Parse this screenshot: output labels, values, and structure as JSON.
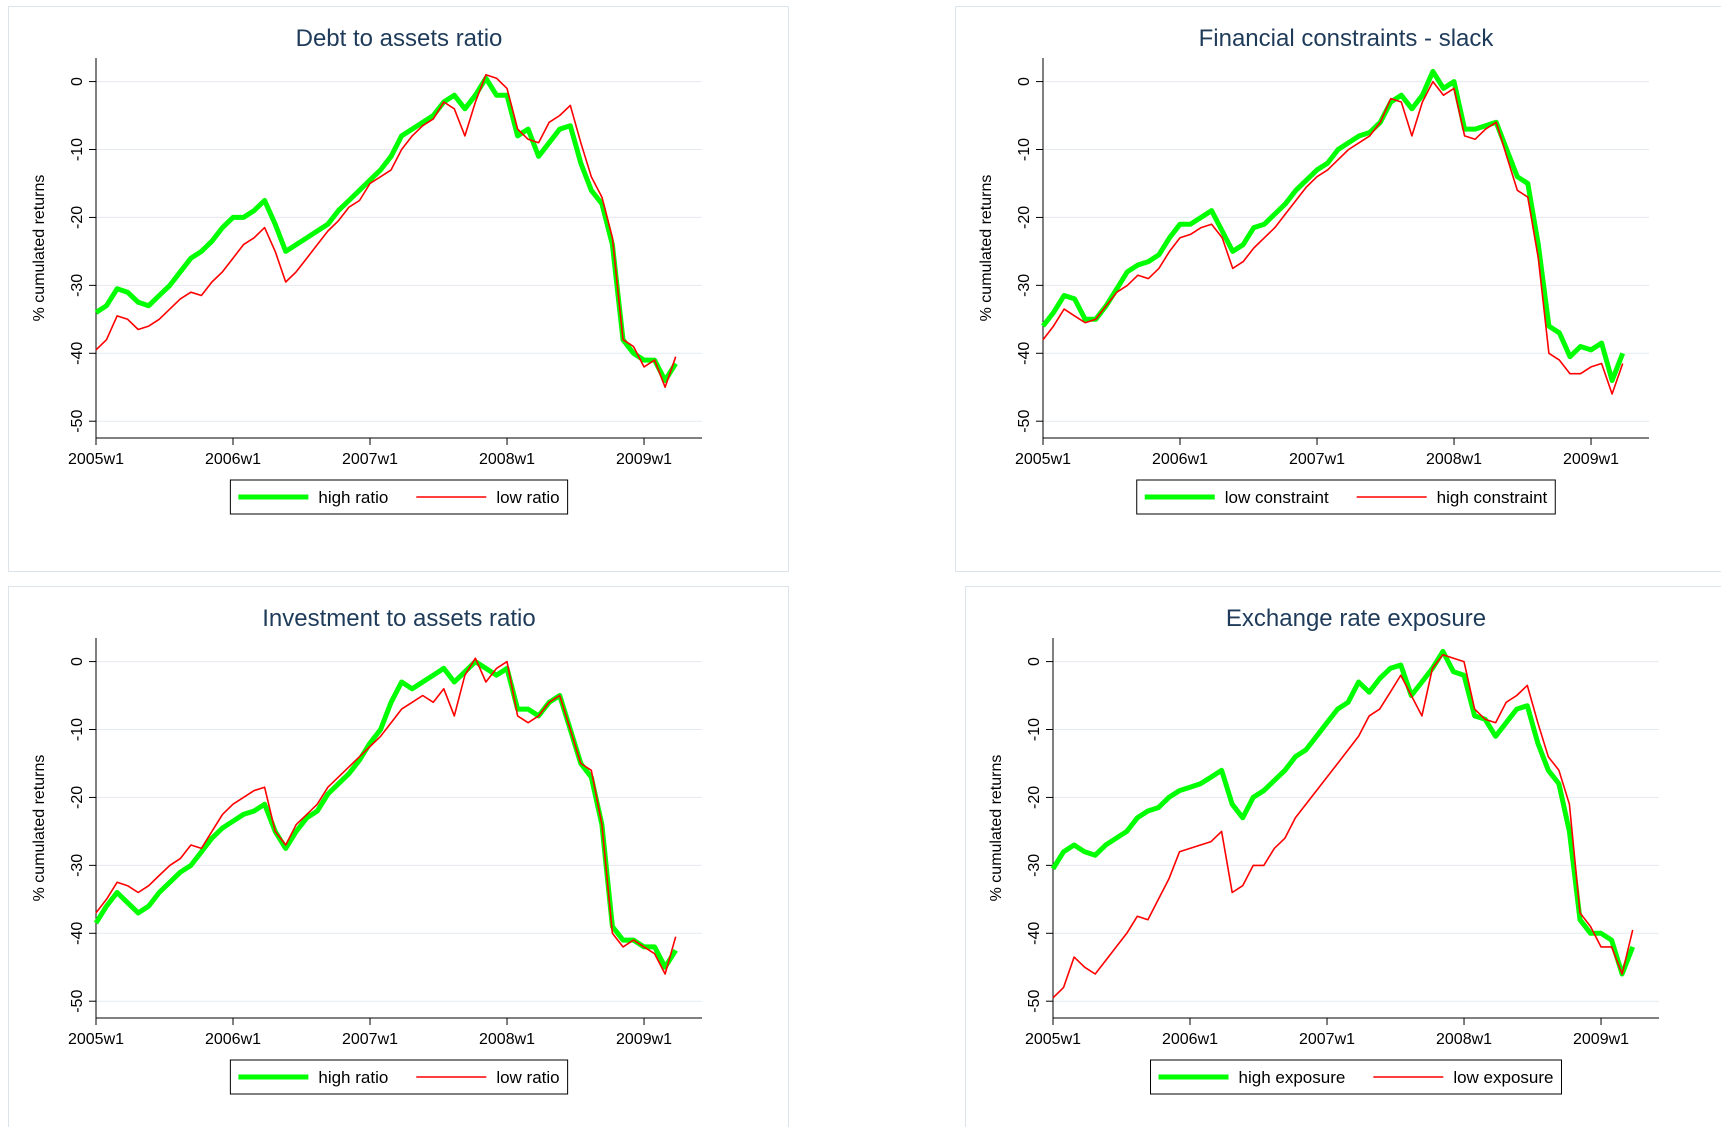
{
  "chart_data": [
    {
      "type": "line",
      "title": "Debt to assets ratio",
      "y_label": "% cumulated returns",
      "categories": [
        "2005w1",
        null,
        null,
        null,
        null,
        null,
        null,
        null,
        null,
        null,
        null,
        null,
        null,
        "2006w1",
        null,
        null,
        null,
        null,
        null,
        null,
        null,
        null,
        null,
        null,
        null,
        null,
        "2007w1",
        null,
        null,
        null,
        null,
        null,
        null,
        null,
        null,
        null,
        null,
        null,
        null,
        "2008w1",
        null,
        null,
        null,
        null,
        null,
        null,
        null,
        null,
        null,
        null,
        null,
        null,
        "2009w1",
        null,
        null,
        null
      ],
      "series": [
        {
          "name": "high ratio",
          "color": "#00ff00",
          "values": [
            -34,
            -33,
            -30.5,
            -31,
            -32.5,
            -33,
            -31.5,
            -30,
            -28,
            -26,
            -25,
            -23.5,
            -21.5,
            -20,
            -20,
            -19,
            -17.5,
            -21,
            -25,
            -24,
            -23,
            -22,
            -21,
            -19,
            -17.5,
            -16,
            -14.5,
            -13,
            -11,
            -8,
            -7,
            -6,
            -5,
            -3,
            -2,
            -4,
            -2,
            0.5,
            -2,
            -2,
            -8,
            -7,
            -11,
            -9,
            -7,
            -6.5,
            -12,
            -16,
            -18,
            -24,
            -38,
            -40,
            -41,
            -41,
            -44,
            -41.5
          ]
        },
        {
          "name": "low ratio",
          "color": "#ff0000",
          "values": [
            -39.5,
            -38,
            -34.5,
            -35,
            -36.5,
            -36,
            -35,
            -33.5,
            -32,
            -31,
            -31.5,
            -29.5,
            -28,
            -26,
            -24,
            -23,
            -21.5,
            -25,
            -29.5,
            -28,
            -26,
            -24,
            -22,
            -20.5,
            -18.5,
            -17.5,
            -15,
            -14,
            -13,
            -10,
            -8,
            -6.5,
            -5.5,
            -3,
            -4,
            -8,
            -3,
            1,
            0.5,
            -1,
            -7,
            -8.5,
            -9,
            -6,
            -5,
            -3.5,
            -9,
            -14,
            -17,
            -23,
            -38,
            -39,
            -42,
            -41,
            -45,
            -40.5
          ]
        }
      ],
      "ylim": [
        -51,
        2
      ],
      "yticks": [
        0,
        -10,
        -20,
        -30,
        -40,
        -50
      ],
      "grid": true
    },
    {
      "type": "line",
      "title": "Financial constraints - slack",
      "y_label": "% cumulated returns",
      "categories": [
        "2005w1",
        null,
        null,
        null,
        null,
        null,
        null,
        null,
        null,
        null,
        null,
        null,
        null,
        "2006w1",
        null,
        null,
        null,
        null,
        null,
        null,
        null,
        null,
        null,
        null,
        null,
        null,
        "2007w1",
        null,
        null,
        null,
        null,
        null,
        null,
        null,
        null,
        null,
        null,
        null,
        null,
        "2008w1",
        null,
        null,
        null,
        null,
        null,
        null,
        null,
        null,
        null,
        null,
        null,
        null,
        "2009w1",
        null,
        null,
        null
      ],
      "series": [
        {
          "name": "low constraint",
          "color": "#00ff00",
          "values": [
            -36,
            -34,
            -31.5,
            -32,
            -35,
            -35,
            -33,
            -30.5,
            -28,
            -27,
            -26.5,
            -25.5,
            -23,
            -21,
            -21,
            -20,
            -19,
            -22,
            -25,
            -24,
            -21.5,
            -21,
            -19.5,
            -18,
            -16,
            -14.5,
            -13,
            -12,
            -10,
            -9,
            -8,
            -7.5,
            -6,
            -3,
            -2,
            -4,
            -2,
            1.5,
            -1,
            0,
            -7,
            -7,
            -6.5,
            -6,
            -10,
            -14,
            -15,
            -24,
            -36,
            -37,
            -40.5,
            -39,
            -39.5,
            -38.5,
            -44,
            -40
          ]
        },
        {
          "name": "high constraint",
          "color": "#ff0000",
          "values": [
            -38,
            -36,
            -33.5,
            -34.5,
            -35.5,
            -35,
            -33,
            -31,
            -30,
            -28.5,
            -29,
            -27.5,
            -25,
            -23,
            -22.5,
            -21.5,
            -21,
            -23,
            -27.5,
            -26.5,
            -24.5,
            -23,
            -21.5,
            -19.5,
            -17.5,
            -15.5,
            -14,
            -13,
            -11.5,
            -10,
            -9,
            -8,
            -6,
            -2.5,
            -3,
            -8,
            -3,
            0,
            -2,
            -1,
            -8,
            -8.5,
            -7,
            -6,
            -11,
            -16,
            -17,
            -26,
            -40,
            -41,
            -43,
            -43,
            -42,
            -41.5,
            -46,
            -41.5
          ]
        }
      ],
      "ylim": [
        -51,
        2
      ],
      "yticks": [
        0,
        -10,
        -20,
        -30,
        -40,
        -50
      ],
      "grid": true
    },
    {
      "type": "line",
      "title": "Investment to assets ratio",
      "y_label": "% cumulated returns",
      "categories": [
        "2005w1",
        null,
        null,
        null,
        null,
        null,
        null,
        null,
        null,
        null,
        null,
        null,
        null,
        "2006w1",
        null,
        null,
        null,
        null,
        null,
        null,
        null,
        null,
        null,
        null,
        null,
        null,
        "2007w1",
        null,
        null,
        null,
        null,
        null,
        null,
        null,
        null,
        null,
        null,
        null,
        null,
        "2008w1",
        null,
        null,
        null,
        null,
        null,
        null,
        null,
        null,
        null,
        null,
        null,
        null,
        "2009w1",
        null,
        null,
        null
      ],
      "series": [
        {
          "name": "high ratio",
          "color": "#00ff00",
          "values": [
            -38.5,
            -36,
            -34,
            -35.5,
            -37,
            -36,
            -34,
            -32.5,
            -31,
            -30,
            -28,
            -26,
            -24.5,
            -23.5,
            -22.5,
            -22,
            -21,
            -25,
            -27.5,
            -25,
            -23,
            -22,
            -19.5,
            -18,
            -16.5,
            -14.5,
            -12,
            -10,
            -6,
            -3,
            -4,
            -3,
            -2,
            -1,
            -3,
            -1.5,
            0,
            -1,
            -2,
            -1,
            -7,
            -7,
            -8,
            -6,
            -5,
            -10,
            -15,
            -17,
            -24,
            -39,
            -41,
            -41,
            -42,
            -42,
            -45,
            -42.5
          ]
        },
        {
          "name": "low ratio",
          "color": "#ff0000",
          "values": [
            -37,
            -35,
            -32.5,
            -33,
            -34,
            -33,
            -31.5,
            -30,
            -29,
            -27,
            -27.5,
            -25,
            -22.5,
            -21,
            -20,
            -19,
            -18.5,
            -25,
            -27,
            -24,
            -22.5,
            -21,
            -18.5,
            -17,
            -15.5,
            -14,
            -12.5,
            -11,
            -9,
            -7,
            -6,
            -5,
            -6,
            -4,
            -8,
            -2,
            0.5,
            -3,
            -1,
            0,
            -8,
            -9,
            -8,
            -6,
            -5,
            -10,
            -15,
            -16,
            -24,
            -40,
            -42,
            -41,
            -42,
            -43,
            -46,
            -40.5
          ]
        }
      ],
      "ylim": [
        -51,
        2
      ],
      "yticks": [
        0,
        -10,
        -20,
        -30,
        -40,
        -50
      ],
      "grid": true
    },
    {
      "type": "line",
      "title": "Exchange rate exposure",
      "y_label": "% cumulated returns",
      "categories": [
        "2005w1",
        null,
        null,
        null,
        null,
        null,
        null,
        null,
        null,
        null,
        null,
        null,
        null,
        "2006w1",
        null,
        null,
        null,
        null,
        null,
        null,
        null,
        null,
        null,
        null,
        null,
        null,
        "2007w1",
        null,
        null,
        null,
        null,
        null,
        null,
        null,
        null,
        null,
        null,
        null,
        null,
        "2008w1",
        null,
        null,
        null,
        null,
        null,
        null,
        null,
        null,
        null,
        null,
        null,
        null,
        "2009w1",
        null,
        null,
        null
      ],
      "series": [
        {
          "name": "high exposure",
          "color": "#00ff00",
          "values": [
            -30.5,
            -28,
            -27,
            -28,
            -28.5,
            -27,
            -26,
            -25,
            -23,
            -22,
            -21.5,
            -20,
            -19,
            -18.5,
            -18,
            -17,
            -16,
            -21,
            -23,
            -20,
            -19,
            -17.5,
            -16,
            -14,
            -13,
            -11,
            -9,
            -7,
            -6,
            -3,
            -4.5,
            -2.5,
            -1,
            -0.5,
            -5,
            -3,
            -1,
            1.5,
            -1.5,
            -2,
            -8,
            -8.5,
            -11,
            -9,
            -7,
            -6.5,
            -12,
            -16,
            -18,
            -25,
            -38,
            -40,
            -40,
            -41,
            -46,
            -42
          ]
        },
        {
          "name": "low exposure",
          "color": "#ff0000",
          "values": [
            -49.5,
            -48,
            -43.5,
            -45,
            -46,
            -44,
            -42,
            -40,
            -37.5,
            -38,
            -35,
            -32,
            -28,
            -27.5,
            -27,
            -26.5,
            -25,
            -34,
            -33,
            -30,
            -30,
            -27.5,
            -26,
            -23,
            -21,
            -19,
            -17,
            -15,
            -13,
            -11,
            -8,
            -7,
            -4.5,
            -2,
            -5,
            -8,
            -1,
            1,
            0.5,
            0,
            -7,
            -8.5,
            -9,
            -6,
            -5,
            -3.5,
            -9,
            -14,
            -16,
            -21,
            -37,
            -39,
            -42,
            -42,
            -46,
            -39.5
          ]
        }
      ],
      "ylim": [
        -51,
        2
      ],
      "yticks": [
        0,
        -10,
        -20,
        -30,
        -40,
        -50
      ],
      "grid": true
    }
  ]
}
